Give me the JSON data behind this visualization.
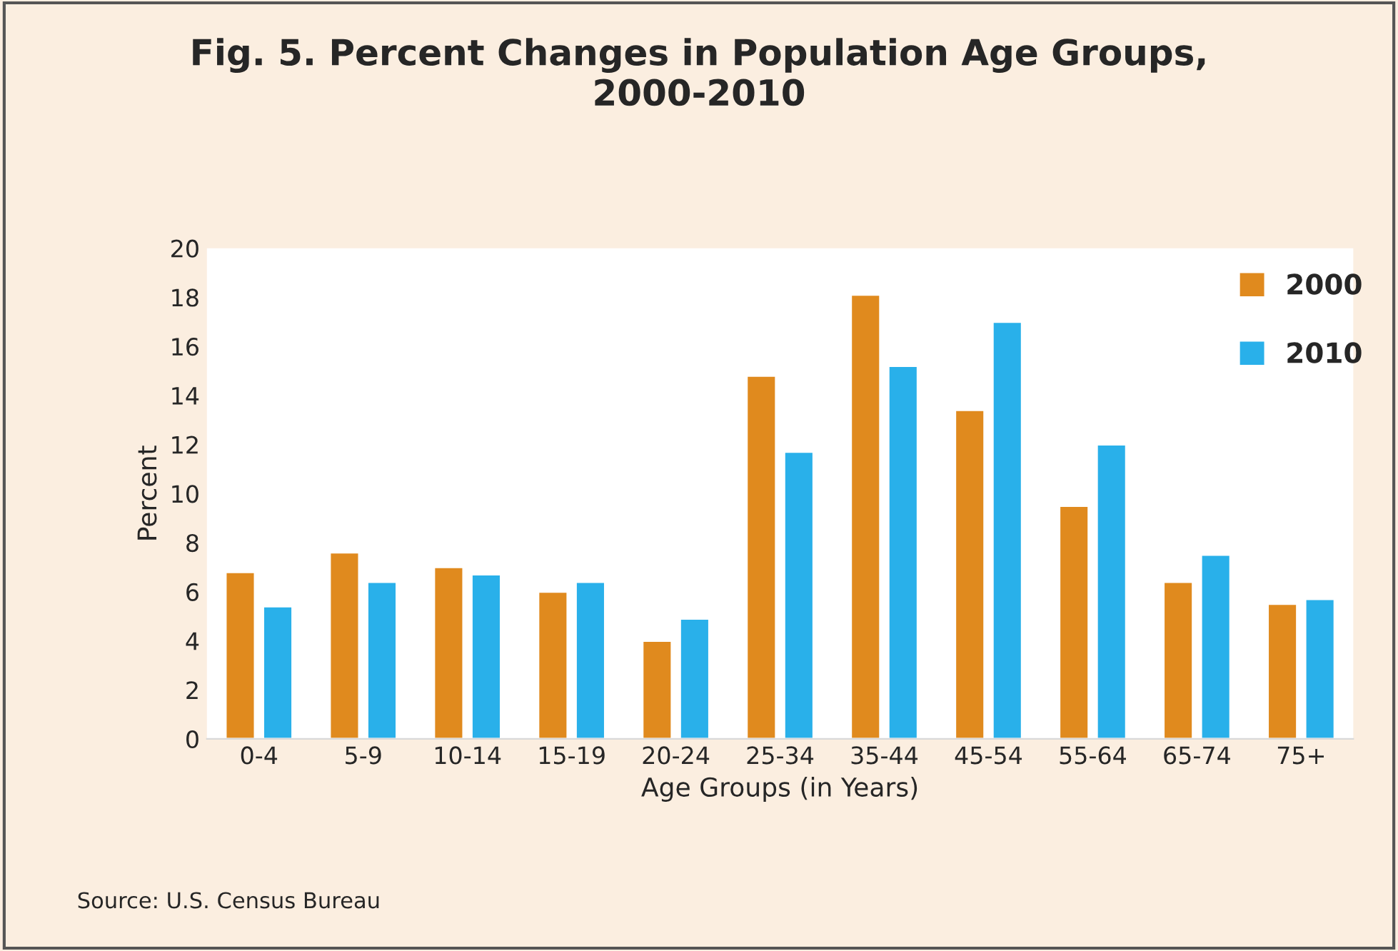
{
  "chart_data": {
    "type": "bar",
    "title": "Fig. 5. Percent Changes in Population Age Groups,\n2000-2010",
    "xlabel": "Age Groups (in Years)",
    "ylabel": "Percent",
    "categories": [
      "0-4",
      "5-9",
      "10-14",
      "15-19",
      "20-24",
      "25-34",
      "35-44",
      "45-54",
      "55-64",
      "65-74",
      "75+"
    ],
    "series": [
      {
        "name": "2000",
        "color": "#e08a1e",
        "values": [
          6.8,
          7.6,
          7.0,
          6.0,
          4.0,
          14.8,
          18.1,
          13.4,
          9.5,
          6.4,
          5.5
        ]
      },
      {
        "name": "2010",
        "color": "#29b0ea",
        "values": [
          5.4,
          6.4,
          6.7,
          6.4,
          4.9,
          11.7,
          15.2,
          17.0,
          12.0,
          7.5,
          5.7
        ]
      }
    ],
    "ylim": [
      0,
      20
    ],
    "yticks": [
      0,
      2,
      4,
      6,
      8,
      10,
      12,
      14,
      16,
      18,
      20
    ],
    "grid": false,
    "legend": "top right",
    "annotations": [
      "Source: U.S. Census Bureau"
    ]
  }
}
